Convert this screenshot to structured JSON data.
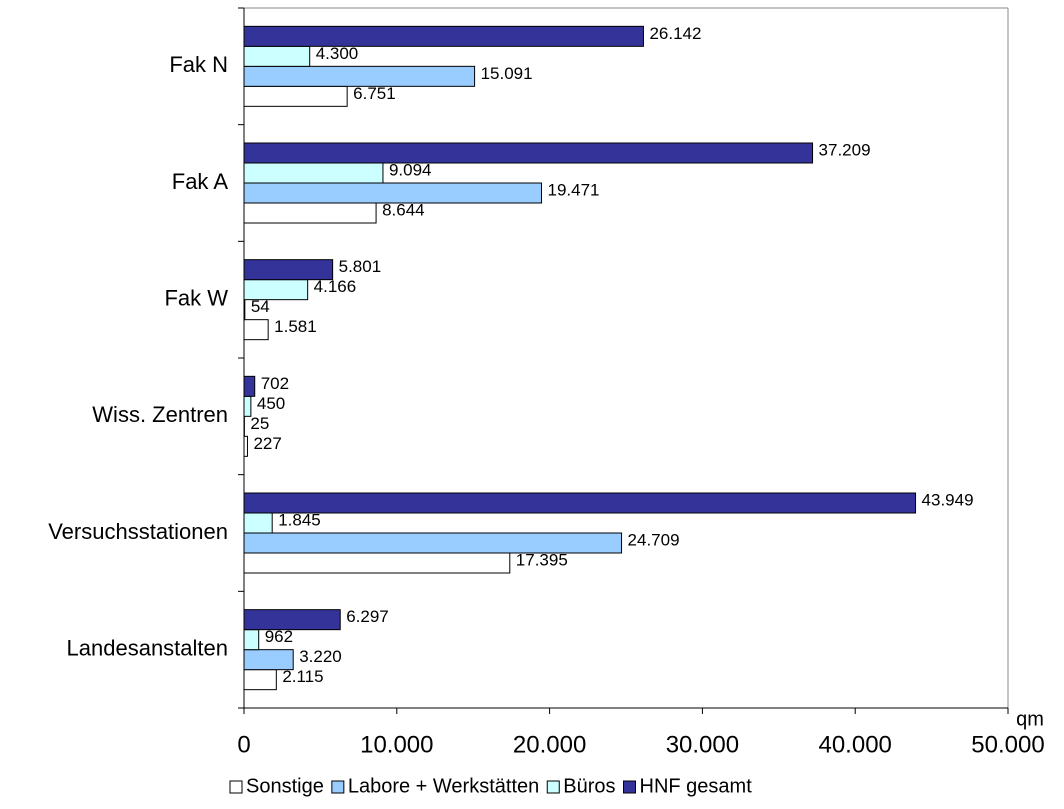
{
  "chart_data": {
    "type": "barh",
    "categories": [
      "Fak N",
      "Fak A",
      "Fak W",
      "Wiss. Zentren",
      "Versuchsstationen",
      "Landesanstalten"
    ],
    "series": [
      {
        "name": "Sonstige",
        "color": "#ffffff",
        "values": [
          6751,
          8644,
          1581,
          227,
          17395,
          2115
        ],
        "value_labels": [
          "6.751",
          "8.644",
          "1.581",
          "227",
          "17.395",
          "2.115"
        ]
      },
      {
        "name": "Labore + Werkstätten",
        "color": "#99ccff",
        "values": [
          15091,
          19471,
          54,
          25,
          24709,
          3220
        ],
        "value_labels": [
          "15.091",
          "19.471",
          "54",
          "25",
          "24.709",
          "3.220"
        ]
      },
      {
        "name": "Büros",
        "color": "#ccffff",
        "values": [
          4300,
          9094,
          4166,
          450,
          1845,
          962
        ],
        "value_labels": [
          "4.300",
          "9.094",
          "4.166",
          "450",
          "1.845",
          "962"
        ]
      },
      {
        "name": "HNF gesamt",
        "color": "#333399",
        "values": [
          26142,
          37209,
          5801,
          702,
          43949,
          6297
        ],
        "value_labels": [
          "26.142",
          "37.209",
          "5.801",
          "702",
          "43.949",
          "6.297"
        ]
      }
    ],
    "xlabel": "qm",
    "xlim": [
      0,
      50000
    ],
    "xticks": [
      0,
      {
        "value": 10000,
        "label": "10.000"
      },
      {
        "value": 20000,
        "label": "20.000"
      },
      {
        "value": 30000,
        "label": "30.000"
      },
      {
        "value": 40000,
        "label": "40.000"
      },
      {
        "value": 50000,
        "label": "50.000"
      }
    ],
    "legend": "bottom"
  }
}
